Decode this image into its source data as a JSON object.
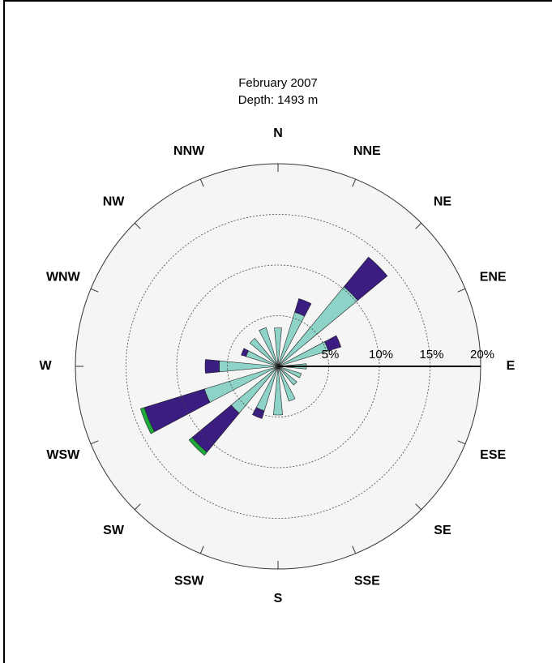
{
  "chart_data": {
    "type": "rose",
    "title": "February 2007",
    "subtitle": "Depth: 1493 m",
    "categories": [
      "N",
      "NNE",
      "NE",
      "ENE",
      "E",
      "ESE",
      "SE",
      "SSE",
      "S",
      "SSW",
      "SW",
      "WSW",
      "W",
      "WNW",
      "NW",
      "NNW"
    ],
    "series": [
      {
        "color": "#8dd3c7",
        "values": [
          3.8,
          5.6,
          10.2,
          5.2,
          2.8,
          2.4,
          2.4,
          3.6,
          4.8,
          4.6,
          6.0,
          7.6,
          5.8,
          3.3,
          3.6,
          4.0
        ]
      },
      {
        "color": "#3b1c80",
        "values": [
          0,
          1.4,
          3.8,
          1.3,
          0,
          0,
          0,
          0,
          0,
          0.8,
          5.0,
          6.2,
          1.4,
          0.5,
          0,
          0
        ]
      },
      {
        "color": "#1faa3c",
        "values": [
          0,
          0,
          0,
          0,
          0,
          0,
          0,
          0,
          0,
          0,
          0.4,
          0.4,
          0,
          0,
          0,
          0
        ]
      }
    ],
    "rlim": [
      0,
      20
    ],
    "rticks": [
      {
        "value": 5,
        "label": "5%"
      },
      {
        "value": 10,
        "label": "10%"
      },
      {
        "value": 15,
        "label": "15%"
      },
      {
        "value": 20,
        "label": "20%"
      }
    ],
    "grid": true
  }
}
